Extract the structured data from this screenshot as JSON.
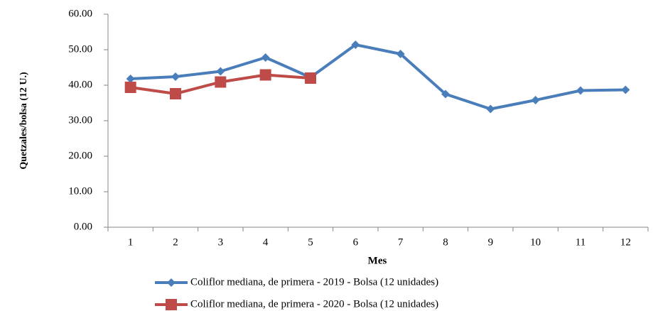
{
  "chart_data": {
    "type": "line",
    "x_label": "Mes",
    "y_label": "Quetzales/bolsa (12 U.)",
    "categories": [
      "1",
      "2",
      "3",
      "4",
      "5",
      "6",
      "7",
      "8",
      "9",
      "10",
      "11",
      "12"
    ],
    "series": [
      {
        "name": "Coliflor mediana, de primera - 2019 - Bolsa (12 unidades)",
        "color": "#4a7ebb",
        "marker": "diamond",
        "values": [
          41.8,
          42.4,
          43.9,
          47.8,
          42.2,
          51.4,
          48.8,
          37.5,
          33.3,
          35.8,
          38.5,
          38.7
        ]
      },
      {
        "name": "Coliflor mediana, de primera - 2020 - Bolsa (12 unidades)",
        "color": "#be4b48",
        "marker": "square",
        "values": [
          39.4,
          37.6,
          40.9,
          42.9,
          42.0,
          null,
          null,
          null,
          null,
          null,
          null,
          null
        ]
      }
    ],
    "ylim": [
      0,
      60
    ],
    "yticks": [
      {
        "value": 0,
        "label": "0.00"
      },
      {
        "value": 10,
        "label": "10.00"
      },
      {
        "value": 20,
        "label": "20.00"
      },
      {
        "value": 30,
        "label": "30.00"
      },
      {
        "value": 40,
        "label": "40.00"
      },
      {
        "value": 50,
        "label": "50.00"
      },
      {
        "value": 60,
        "label": "60.00"
      }
    ],
    "grid": false
  }
}
